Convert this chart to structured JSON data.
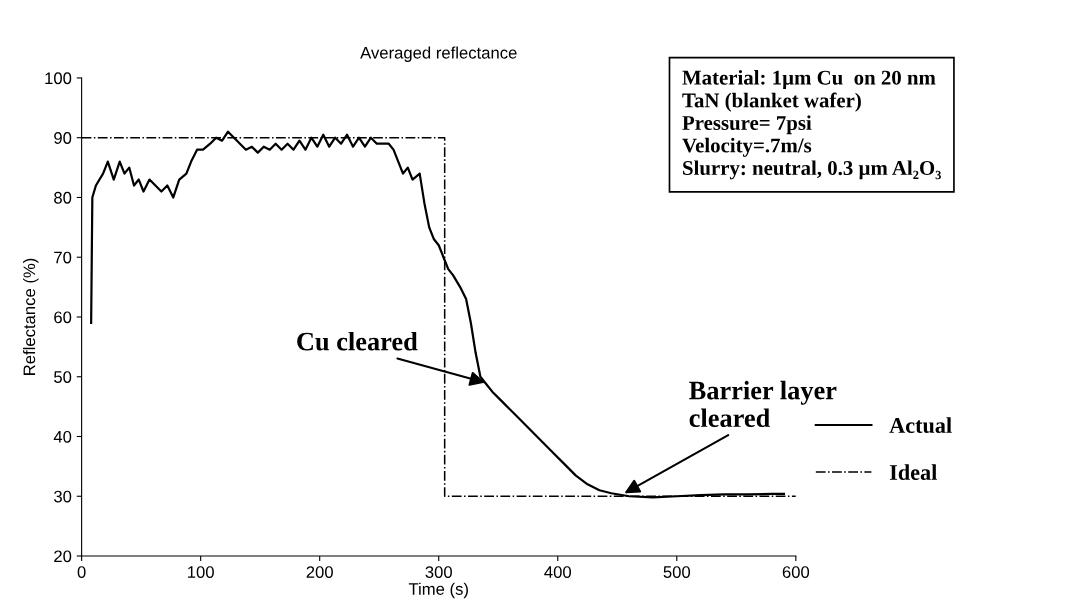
{
  "chart_data": {
    "type": "line",
    "title": "Averaged reflectance",
    "xlabel": "Time (s)",
    "ylabel": "Reflectance (%)",
    "xlim": [
      0,
      600
    ],
    "xticks": [
      0,
      100,
      200,
      300,
      400,
      500,
      600
    ],
    "ylim": [
      20,
      100
    ],
    "yticks": [
      20,
      30,
      40,
      50,
      60,
      70,
      80,
      90,
      100
    ],
    "grid": false,
    "legend": "right",
    "marker": "none",
    "series": [
      {
        "name": "Actual",
        "color": "#000000",
        "line_style": "solid",
        "x": [
          8,
          9,
          12,
          18,
          22,
          27,
          32,
          36,
          40,
          44,
          48,
          52,
          57,
          62,
          67,
          72,
          77,
          82,
          88,
          92,
          97,
          102,
          108,
          113,
          118,
          123,
          128,
          133,
          138,
          143,
          148,
          153,
          158,
          163,
          168,
          173,
          178,
          183,
          188,
          193,
          198,
          203,
          208,
          213,
          218,
          223,
          228,
          233,
          238,
          243,
          248,
          253,
          258,
          262,
          266,
          270,
          274,
          278,
          284,
          288,
          292,
          296,
          300,
          304,
          308,
          312,
          318,
          323,
          327,
          331,
          335,
          339,
          345,
          355,
          365,
          375,
          385,
          395,
          405,
          415,
          425,
          435,
          445,
          460,
          480,
          500,
          520,
          540,
          560,
          580,
          590
        ],
        "values": [
          59,
          80,
          82,
          84,
          86,
          83,
          86,
          84,
          85,
          82,
          83,
          81,
          83,
          82,
          81,
          82,
          80,
          83,
          84,
          86,
          88,
          88,
          89,
          90,
          89.5,
          91,
          90,
          89,
          88,
          88.5,
          87.5,
          88.5,
          88,
          89,
          88,
          89,
          88,
          89.5,
          88,
          90,
          88.5,
          90.5,
          88.5,
          90,
          89,
          90.5,
          88.5,
          90,
          88.5,
          90,
          89,
          89,
          89,
          88,
          86,
          84,
          85,
          83,
          84,
          79,
          75,
          73,
          72,
          70,
          68,
          67,
          65,
          63,
          59,
          54,
          50,
          49,
          47.5,
          45.5,
          43.5,
          41.5,
          39.5,
          37.5,
          35.5,
          33.5,
          32,
          31,
          30.5,
          30,
          29.8,
          30,
          30.2,
          30.3,
          30.3,
          30.4,
          30.4
        ]
      },
      {
        "name": "Ideal",
        "color": "#000000",
        "line_style": "dashdot",
        "x": [
          0,
          305,
          305,
          600
        ],
        "values": [
          90,
          90,
          30,
          30
        ]
      }
    ],
    "annotations": [
      {
        "text": "Cu cleared",
        "x": 339,
        "y": 49
      },
      {
        "text": "Barrier layer\ncleared",
        "x": 456,
        "y": 30.5
      },
      "Material: 1µm Cu  on 20 nm\nTaN (blanket wafer)\nPressure= 7psi\nVelocity=.7m/s\nSlurry: neutral, 0.3 µm Al₂O₃"
    ]
  }
}
